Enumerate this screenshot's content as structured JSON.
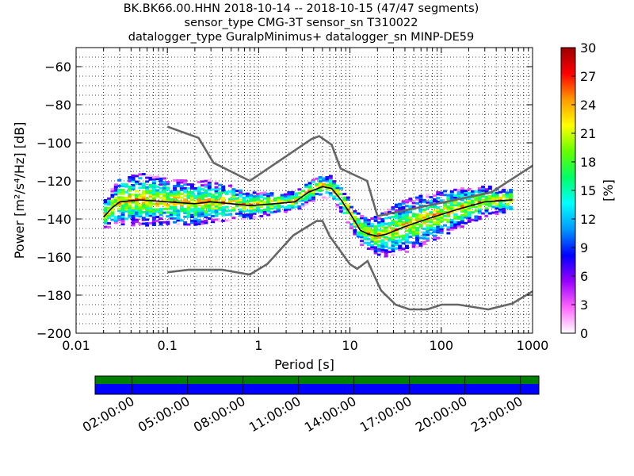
{
  "chart_data": {
    "type": "heatmap",
    "title": [
      "BK.BK66.00.HHN   2018-10-14 -- 2018-10-15  (47/47 segments)",
      "sensor_type CMG-3T sensor_sn T310022",
      "datalogger_type GuralpMinimus+ datalogger_sn MINP-DE59"
    ],
    "xlabel": "Period [s]",
    "ylabel": "Power [m²/s⁴/Hz] [dB]",
    "colorbar_label": "[%]",
    "x_scale": "log",
    "xlim": [
      0.01,
      1000
    ],
    "ylim": [
      -200,
      -50
    ],
    "x_ticks": [
      {
        "value": 0.01,
        "label": "0.01"
      },
      {
        "value": 0.1,
        "label": "0.1"
      },
      {
        "value": 1,
        "label": "1"
      },
      {
        "value": 10,
        "label": "10"
      },
      {
        "value": 100,
        "label": "100"
      },
      {
        "value": 1000,
        "label": "1000"
      }
    ],
    "y_ticks": [
      {
        "value": -60,
        "label": "−60"
      },
      {
        "value": -80,
        "label": "−80"
      },
      {
        "value": -100,
        "label": "−100"
      },
      {
        "value": -120,
        "label": "−120"
      },
      {
        "value": -140,
        "label": "−140"
      },
      {
        "value": -160,
        "label": "−160"
      },
      {
        "value": -180,
        "label": "−180"
      },
      {
        "value": -200,
        "label": "−200"
      }
    ],
    "colorbar": {
      "range": [
        0,
        30
      ],
      "ticks": [
        {
          "value": 0,
          "label": "0"
        },
        {
          "value": 3,
          "label": "3"
        },
        {
          "value": 6,
          "label": "6"
        },
        {
          "value": 9,
          "label": "9"
        },
        {
          "value": 12,
          "label": "12"
        },
        {
          "value": 15,
          "label": "15"
        },
        {
          "value": 18,
          "label": "18"
        },
        {
          "value": 21,
          "label": "21"
        },
        {
          "value": 24,
          "label": "24"
        },
        {
          "value": 27,
          "label": "27"
        },
        {
          "value": 30,
          "label": "30"
        }
      ],
      "colormap": [
        "#ffffff",
        "#ff66ff",
        "#9900ff",
        "#0000ff",
        "#0099ff",
        "#00ffff",
        "#00ff66",
        "#66ff00",
        "#ffff00",
        "#ff9900",
        "#ff0000",
        "#990000"
      ]
    },
    "grid": true,
    "new_high_noise_model": [
      [
        0.1,
        -91.5
      ],
      [
        0.22,
        -97.4
      ],
      [
        0.32,
        -110.5
      ],
      [
        0.8,
        -120
      ],
      [
        3.8,
        -98
      ],
      [
        4.6,
        -96.5
      ],
      [
        6.3,
        -101
      ],
      [
        7.9,
        -113.5
      ],
      [
        15.4,
        -120
      ],
      [
        20,
        -138.5
      ],
      [
        354.8,
        -126
      ],
      [
        1000,
        -112
      ]
    ],
    "new_low_noise_model": [
      [
        0.1,
        -168
      ],
      [
        0.17,
        -166.7
      ],
      [
        0.4,
        -166.7
      ],
      [
        0.8,
        -169.2
      ],
      [
        1.24,
        -163.7
      ],
      [
        2.4,
        -148.6
      ],
      [
        4.3,
        -141.1
      ],
      [
        5,
        -141.1
      ],
      [
        6,
        -149
      ],
      [
        10,
        -163.8
      ],
      [
        12,
        -166.2
      ],
      [
        15.6,
        -162.1
      ],
      [
        21.9,
        -177.5
      ],
      [
        31.6,
        -185
      ],
      [
        45,
        -187.5
      ],
      [
        70,
        -187.5
      ],
      [
        101,
        -185
      ],
      [
        154,
        -185
      ],
      [
        328,
        -187.5
      ],
      [
        600,
        -184.4
      ],
      [
        1000,
        -178
      ]
    ],
    "psd_mode_curve": [
      [
        0.02,
        -139
      ],
      [
        0.025,
        -134
      ],
      [
        0.03,
        -131
      ],
      [
        0.05,
        -130
      ],
      [
        0.1,
        -131
      ],
      [
        0.2,
        -132
      ],
      [
        0.3,
        -131
      ],
      [
        0.5,
        -132
      ],
      [
        0.8,
        -133
      ],
      [
        1.5,
        -132
      ],
      [
        2.5,
        -131
      ],
      [
        3.5,
        -126
      ],
      [
        5,
        -123
      ],
      [
        6.3,
        -124
      ],
      [
        8,
        -130
      ],
      [
        10,
        -137
      ],
      [
        13,
        -146
      ],
      [
        16,
        -148
      ],
      [
        20,
        -149
      ],
      [
        25,
        -148
      ],
      [
        40,
        -144
      ],
      [
        70,
        -140
      ],
      [
        150,
        -135
      ],
      [
        300,
        -131
      ],
      [
        600,
        -130
      ]
    ],
    "psd_spread": [
      [
        0.02,
        7
      ],
      [
        0.03,
        12
      ],
      [
        0.05,
        14
      ],
      [
        0.1,
        12
      ],
      [
        0.3,
        11
      ],
      [
        0.8,
        7
      ],
      [
        2,
        5
      ],
      [
        4,
        6
      ],
      [
        6,
        6
      ],
      [
        10,
        7
      ],
      [
        16,
        8
      ],
      [
        25,
        12
      ],
      [
        40,
        14
      ],
      [
        100,
        12
      ],
      [
        300,
        8
      ],
      [
        600,
        6
      ]
    ],
    "timeline": {
      "labels": [
        "02:00:00",
        "05:00:00",
        "08:00:00",
        "11:00:00",
        "14:00:00",
        "17:00:00",
        "20:00:00",
        "23:00:00"
      ],
      "top_bar_color": "#007f00",
      "bottom_bar_color": "#0000ff"
    }
  }
}
